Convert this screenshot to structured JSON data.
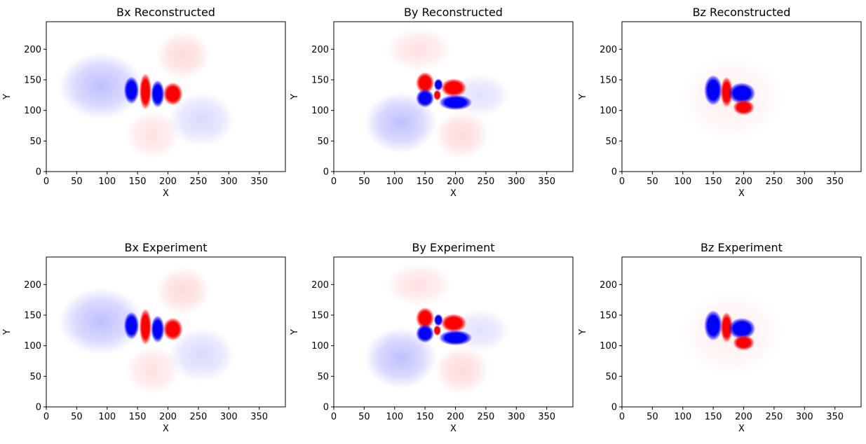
{
  "figure": {
    "colors": {
      "positive": "#ff0000",
      "negative": "#0000ff",
      "neutral": "#ffffff"
    }
  },
  "chart_data": [
    {
      "type": "heatmap",
      "title": "Bx Reconstructed",
      "xlabel": "X",
      "ylabel": "Y",
      "xlim": [
        0,
        393
      ],
      "ylim": [
        0,
        245
      ],
      "xticks": [
        "0",
        "50",
        "100",
        "150",
        "200",
        "250",
        "300",
        "350"
      ],
      "yticks": [
        "0",
        "50",
        "100",
        "150",
        "200"
      ],
      "colormap": "bwr",
      "lobes": [
        {
          "x": 140,
          "y": 133,
          "rx": 10,
          "ry": 18,
          "sign": -1,
          "label": "core"
        },
        {
          "x": 163,
          "y": 131,
          "rx": 8,
          "ry": 24,
          "sign": 1,
          "label": "core"
        },
        {
          "x": 183,
          "y": 127,
          "rx": 9,
          "ry": 18,
          "sign": -1,
          "label": "core"
        },
        {
          "x": 208,
          "y": 127,
          "rx": 13,
          "ry": 15,
          "sign": 1,
          "label": "core"
        },
        {
          "x": 90,
          "y": 140,
          "rx": 70,
          "ry": 55,
          "sign": -0.25,
          "label": "halo"
        },
        {
          "x": 255,
          "y": 85,
          "rx": 55,
          "ry": 45,
          "sign": -0.15,
          "label": "halo"
        },
        {
          "x": 225,
          "y": 190,
          "rx": 45,
          "ry": 40,
          "sign": 0.15,
          "label": "halo"
        },
        {
          "x": 175,
          "y": 60,
          "rx": 45,
          "ry": 40,
          "sign": 0.12,
          "label": "halo"
        }
      ]
    },
    {
      "type": "heatmap",
      "title": "By Reconstructed",
      "xlabel": "X",
      "ylabel": "Y",
      "xlim": [
        0,
        393
      ],
      "ylim": [
        0,
        245
      ],
      "xticks": [
        "0",
        "50",
        "100",
        "150",
        "200",
        "250",
        "300",
        "350"
      ],
      "yticks": [
        "0",
        "50",
        "100",
        "150",
        "200"
      ],
      "colormap": "bwr",
      "lobes": [
        {
          "x": 150,
          "y": 145,
          "rx": 12,
          "ry": 14,
          "sign": 1,
          "label": "core"
        },
        {
          "x": 150,
          "y": 120,
          "rx": 12,
          "ry": 12,
          "sign": -1,
          "label": "core"
        },
        {
          "x": 172,
          "y": 142,
          "rx": 6,
          "ry": 8,
          "sign": -1,
          "label": "core"
        },
        {
          "x": 197,
          "y": 137,
          "rx": 17,
          "ry": 12,
          "sign": 1,
          "label": "core"
        },
        {
          "x": 170,
          "y": 125,
          "rx": 5,
          "ry": 7,
          "sign": 1,
          "label": "core"
        },
        {
          "x": 200,
          "y": 113,
          "rx": 22,
          "ry": 10,
          "sign": -1,
          "label": "core"
        },
        {
          "x": 110,
          "y": 80,
          "rx": 60,
          "ry": 50,
          "sign": -0.25,
          "label": "halo"
        },
        {
          "x": 240,
          "y": 125,
          "rx": 50,
          "ry": 35,
          "sign": -0.12,
          "label": "halo"
        },
        {
          "x": 140,
          "y": 200,
          "rx": 55,
          "ry": 35,
          "sign": 0.12,
          "label": "halo"
        },
        {
          "x": 210,
          "y": 60,
          "rx": 45,
          "ry": 40,
          "sign": 0.15,
          "label": "halo"
        }
      ]
    },
    {
      "type": "heatmap",
      "title": "Bz Reconstructed",
      "xlabel": "X",
      "ylabel": "Y",
      "xlim": [
        0,
        393
      ],
      "ylim": [
        0,
        245
      ],
      "xticks": [
        "0",
        "50",
        "100",
        "150",
        "200",
        "250",
        "300",
        "350"
      ],
      "yticks": [
        "0",
        "50",
        "100",
        "150",
        "200"
      ],
      "colormap": "bwr",
      "lobes": [
        {
          "x": 150,
          "y": 133,
          "rx": 12,
          "ry": 20,
          "sign": -1,
          "label": "core"
        },
        {
          "x": 172,
          "y": 130,
          "rx": 8,
          "ry": 20,
          "sign": 1,
          "label": "core"
        },
        {
          "x": 197,
          "y": 128,
          "rx": 18,
          "ry": 14,
          "sign": -1,
          "label": "core"
        },
        {
          "x": 200,
          "y": 105,
          "rx": 14,
          "ry": 10,
          "sign": 1,
          "label": "core"
        },
        {
          "x": 180,
          "y": 120,
          "rx": 85,
          "ry": 70,
          "sign": 0.06,
          "label": "halo"
        }
      ]
    },
    {
      "type": "heatmap",
      "title": "Bx Experiment",
      "xlabel": "X",
      "ylabel": "Y",
      "xlim": [
        0,
        393
      ],
      "ylim": [
        0,
        245
      ],
      "xticks": [
        "0",
        "50",
        "100",
        "150",
        "200",
        "250",
        "300",
        "350"
      ],
      "yticks": [
        "0",
        "50",
        "100",
        "150",
        "200"
      ],
      "colormap": "bwr",
      "lobes": [
        {
          "x": 140,
          "y": 133,
          "rx": 10,
          "ry": 18,
          "sign": -1,
          "label": "core"
        },
        {
          "x": 163,
          "y": 131,
          "rx": 8,
          "ry": 24,
          "sign": 1,
          "label": "core"
        },
        {
          "x": 183,
          "y": 127,
          "rx": 9,
          "ry": 18,
          "sign": -1,
          "label": "core"
        },
        {
          "x": 208,
          "y": 127,
          "rx": 13,
          "ry": 15,
          "sign": 1,
          "label": "core"
        },
        {
          "x": 90,
          "y": 140,
          "rx": 70,
          "ry": 55,
          "sign": -0.25,
          "label": "halo"
        },
        {
          "x": 255,
          "y": 85,
          "rx": 55,
          "ry": 45,
          "sign": -0.15,
          "label": "halo"
        },
        {
          "x": 225,
          "y": 190,
          "rx": 45,
          "ry": 40,
          "sign": 0.15,
          "label": "halo"
        },
        {
          "x": 175,
          "y": 60,
          "rx": 45,
          "ry": 40,
          "sign": 0.12,
          "label": "halo"
        }
      ]
    },
    {
      "type": "heatmap",
      "title": "By Experiment",
      "xlabel": "X",
      "ylabel": "Y",
      "xlim": [
        0,
        393
      ],
      "ylim": [
        0,
        245
      ],
      "xticks": [
        "0",
        "50",
        "100",
        "150",
        "200",
        "250",
        "300",
        "350"
      ],
      "yticks": [
        "0",
        "50",
        "100",
        "150",
        "200"
      ],
      "colormap": "bwr",
      "lobes": [
        {
          "x": 150,
          "y": 145,
          "rx": 12,
          "ry": 14,
          "sign": 1,
          "label": "core"
        },
        {
          "x": 150,
          "y": 120,
          "rx": 12,
          "ry": 12,
          "sign": -1,
          "label": "core"
        },
        {
          "x": 172,
          "y": 142,
          "rx": 6,
          "ry": 8,
          "sign": -1,
          "label": "core"
        },
        {
          "x": 197,
          "y": 137,
          "rx": 17,
          "ry": 12,
          "sign": 1,
          "label": "core"
        },
        {
          "x": 170,
          "y": 125,
          "rx": 5,
          "ry": 7,
          "sign": 1,
          "label": "core"
        },
        {
          "x": 200,
          "y": 113,
          "rx": 22,
          "ry": 10,
          "sign": -1,
          "label": "core"
        },
        {
          "x": 110,
          "y": 80,
          "rx": 60,
          "ry": 50,
          "sign": -0.25,
          "label": "halo"
        },
        {
          "x": 240,
          "y": 125,
          "rx": 50,
          "ry": 35,
          "sign": -0.12,
          "label": "halo"
        },
        {
          "x": 140,
          "y": 200,
          "rx": 55,
          "ry": 35,
          "sign": 0.12,
          "label": "halo"
        },
        {
          "x": 210,
          "y": 60,
          "rx": 45,
          "ry": 40,
          "sign": 0.15,
          "label": "halo"
        }
      ]
    },
    {
      "type": "heatmap",
      "title": "Bz Experiment",
      "xlabel": "X",
      "ylabel": "Y",
      "xlim": [
        0,
        393
      ],
      "ylim": [
        0,
        245
      ],
      "xticks": [
        "0",
        "50",
        "100",
        "150",
        "200",
        "250",
        "300",
        "350"
      ],
      "yticks": [
        "0",
        "50",
        "100",
        "150",
        "200"
      ],
      "colormap": "bwr",
      "lobes": [
        {
          "x": 150,
          "y": 133,
          "rx": 12,
          "ry": 20,
          "sign": -1,
          "label": "core"
        },
        {
          "x": 172,
          "y": 130,
          "rx": 8,
          "ry": 20,
          "sign": 1,
          "label": "core"
        },
        {
          "x": 197,
          "y": 128,
          "rx": 18,
          "ry": 14,
          "sign": -1,
          "label": "core"
        },
        {
          "x": 200,
          "y": 105,
          "rx": 14,
          "ry": 10,
          "sign": 1,
          "label": "core"
        },
        {
          "x": 180,
          "y": 120,
          "rx": 85,
          "ry": 70,
          "sign": 0.06,
          "label": "halo"
        }
      ]
    }
  ]
}
